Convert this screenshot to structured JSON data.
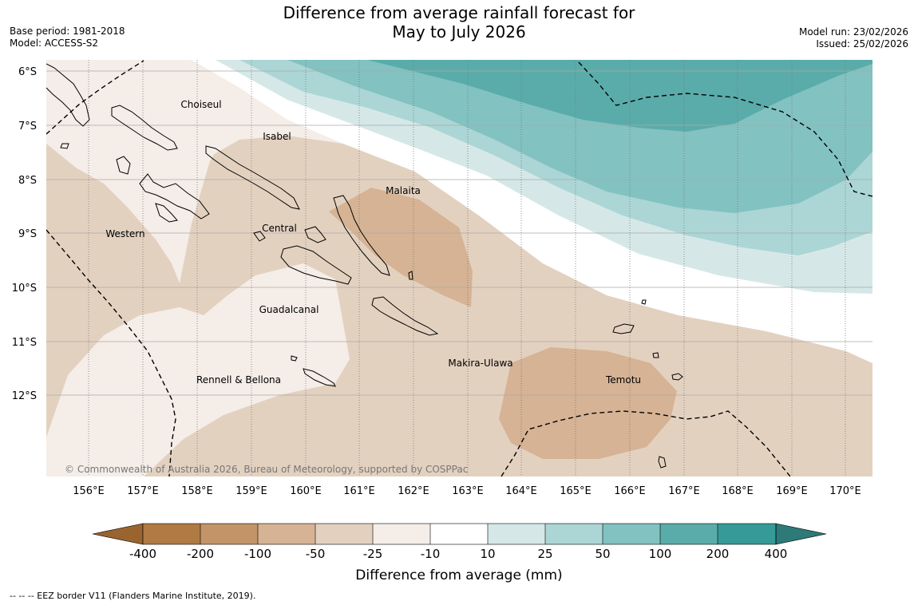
{
  "title_line1": "Difference from average rainfall forecast for",
  "title_line2": "May to July 2026",
  "base_period": "Base period: 1981-2018",
  "model": "Model: ACCESS-S2",
  "model_run": "Model run: 23/02/2026",
  "issued": "Issued: 25/02/2026",
  "lat_labels": [
    "6°S",
    "7°S",
    "8°S",
    "9°S",
    "10°S",
    "11°S",
    "12°S"
  ],
  "lon_labels": [
    "156°E",
    "157°E",
    "158°E",
    "159°E",
    "160°E",
    "161°E",
    "162°E",
    "163°E",
    "164°E",
    "165°E",
    "166°E",
    "167°E",
    "168°E",
    "169°E",
    "170°E"
  ],
  "places": {
    "choiseul": "Choiseul",
    "isabel": "Isabel",
    "malaita": "Malaita",
    "central": "Central",
    "western": "Western",
    "guadalcanal": "Guadalcanal",
    "makira_ulawa": "Makira-Ulawa",
    "temotu": "Temotu",
    "rennell_bellona": "Rennell & Bellona"
  },
  "copyright": "© Commonwealth of Australia 2026, Bureau of Meteorology, supported by COSPPac",
  "colorbar": {
    "labels": [
      "-400",
      "-200",
      "-100",
      "-50",
      "-25",
      "-10",
      "10",
      "25",
      "50",
      "100",
      "200",
      "400"
    ],
    "colors": [
      "#b07a44",
      "#c39468",
      "#d5b394",
      "#e3d1c0",
      "#f5ede8",
      "#ffffff",
      "#d5e8e7",
      "#abd6d5",
      "#82c2c1",
      "#5aacaa",
      "#359a98"
    ],
    "under_color": "#9a642f",
    "over_color": "#2d7a78",
    "title": "Difference from average (mm)"
  },
  "footnote": "-- -- -- EEZ border V11 (Flanders Marine Institute, 2019)."
}
